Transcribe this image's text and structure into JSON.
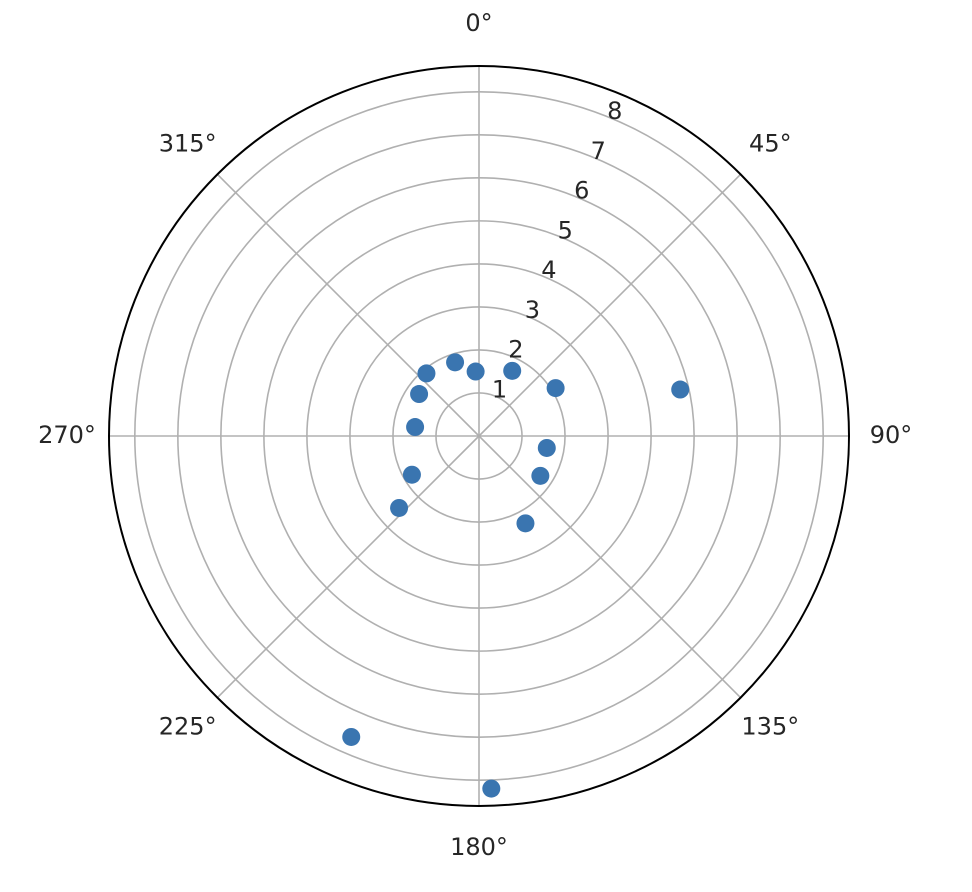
{
  "chart_data": {
    "type": "scatter",
    "projection": "polar",
    "theta_direction": "clockwise",
    "theta_zero_location": "top",
    "angle_ticks": [
      "0°",
      "45°",
      "90°",
      "135°",
      "180°",
      "225°",
      "270°",
      "315°"
    ],
    "angle_tick_values_deg": [
      0,
      45,
      90,
      135,
      180,
      225,
      270,
      315
    ],
    "radial_ticks": [
      "1",
      "2",
      "3",
      "4",
      "5",
      "6",
      "7",
      "8"
    ],
    "radial_tick_values": [
      1,
      2,
      3,
      4,
      5,
      6,
      7,
      8
    ],
    "rlim": [
      0,
      8.6
    ],
    "radial_label_angle_deg": 22.5,
    "grid": true,
    "marker_color": "#3a75b0",
    "points": [
      {
        "theta_deg": 357,
        "r": 1.5
      },
      {
        "theta_deg": 27,
        "r": 1.7
      },
      {
        "theta_deg": 58,
        "r": 2.1
      },
      {
        "theta_deg": 77,
        "r": 4.8
      },
      {
        "theta_deg": 100,
        "r": 1.6
      },
      {
        "theta_deg": 123,
        "r": 1.7
      },
      {
        "theta_deg": 152,
        "r": 2.3
      },
      {
        "theta_deg": 320,
        "r": 1.9
      },
      {
        "theta_deg": 342,
        "r": 1.8
      },
      {
        "theta_deg": 305,
        "r": 1.7
      },
      {
        "theta_deg": 278,
        "r": 1.5
      },
      {
        "theta_deg": 240,
        "r": 1.8
      },
      {
        "theta_deg": 228,
        "r": 2.5
      },
      {
        "theta_deg": 203,
        "r": 7.6
      },
      {
        "theta_deg": 178,
        "r": 8.2
      }
    ]
  }
}
